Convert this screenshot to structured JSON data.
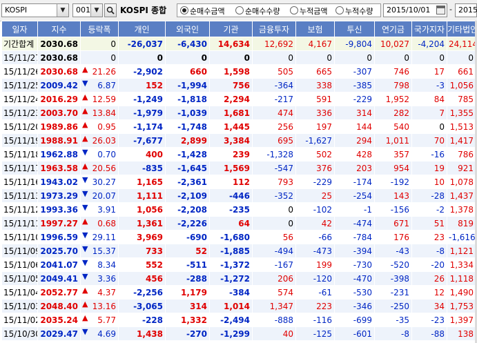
{
  "toolbar": {
    "market": "KOSPI",
    "code": "001",
    "index_name": "KOSPI 종합",
    "radios": [
      {
        "label": "순매수금액",
        "selected": true
      },
      {
        "label": "순매수수량",
        "selected": false
      },
      {
        "label": "누적금액",
        "selected": false
      },
      {
        "label": "누적수량",
        "selected": false
      }
    ],
    "date_from": "2015/10/01",
    "tilde": "-",
    "date_to": "2015"
  },
  "columns": [
    "일자",
    "지수",
    "등락폭",
    "개인",
    "외국인",
    "기관",
    "금융투자",
    "보험",
    "투신",
    "연기금",
    "국가지자",
    "기타법인"
  ],
  "rows": [
    {
      "date": "기간합계",
      "index": "2030.68",
      "dir": "none",
      "chg": "0",
      "ind": "-26,037",
      "for": "-6,430",
      "inst": "14,634",
      "fin": "12,692",
      "ins": "4,167",
      "trust": "-9,804",
      "pen": "10,027",
      "gov": "-4,204",
      "etc": "24,114",
      "type": "sum"
    },
    {
      "date": "15/11/27",
      "index": "2030.68",
      "dir": "none",
      "chg": "0",
      "ind": "0",
      "for": "0",
      "inst": "0",
      "fin": "0",
      "ins": "0",
      "trust": "0",
      "pen": "0",
      "gov": "0",
      "etc": "0"
    },
    {
      "date": "15/11/26",
      "index": "2030.68",
      "dir": "up",
      "chg": "21.26",
      "ind": "-2,902",
      "for": "660",
      "inst": "1,598",
      "fin": "505",
      "ins": "665",
      "trust": "-307",
      "pen": "746",
      "gov": "17",
      "etc": "661"
    },
    {
      "date": "15/11/25",
      "index": "2009.42",
      "dir": "down",
      "chg": "6.87",
      "ind": "152",
      "for": "-1,994",
      "inst": "756",
      "fin": "-364",
      "ins": "338",
      "trust": "-385",
      "pen": "798",
      "gov": "-3",
      "etc": "1,056"
    },
    {
      "date": "15/11/24",
      "index": "2016.29",
      "dir": "up",
      "chg": "12.59",
      "ind": "-1,249",
      "for": "-1,818",
      "inst": "2,294",
      "fin": "-217",
      "ins": "591",
      "trust": "-229",
      "pen": "1,952",
      "gov": "84",
      "etc": "785"
    },
    {
      "date": "15/11/23",
      "index": "2003.70",
      "dir": "up",
      "chg": "13.84",
      "ind": "-1,979",
      "for": "-1,039",
      "inst": "1,681",
      "fin": "474",
      "ins": "336",
      "trust": "314",
      "pen": "282",
      "gov": "7",
      "etc": "1,355"
    },
    {
      "date": "15/11/20",
      "index": "1989.86",
      "dir": "up",
      "chg": "0.95",
      "ind": "-1,174",
      "for": "-1,748",
      "inst": "1,445",
      "fin": "256",
      "ins": "197",
      "trust": "144",
      "pen": "540",
      "gov": "0",
      "etc": "1,513"
    },
    {
      "date": "15/11/19",
      "index": "1988.91",
      "dir": "up",
      "chg": "26.03",
      "ind": "-7,677",
      "for": "2,899",
      "inst": "3,384",
      "fin": "695",
      "ins": "-1,627",
      "trust": "294",
      "pen": "1,011",
      "gov": "70",
      "etc": "1,417"
    },
    {
      "date": "15/11/18",
      "index": "1962.88",
      "dir": "down",
      "chg": "0.70",
      "ind": "400",
      "for": "-1,428",
      "inst": "239",
      "fin": "-1,328",
      "ins": "502",
      "trust": "428",
      "pen": "357",
      "gov": "-16",
      "etc": "786"
    },
    {
      "date": "15/11/17",
      "index": "1963.58",
      "dir": "up",
      "chg": "20.56",
      "ind": "-835",
      "for": "-1,645",
      "inst": "1,569",
      "fin": "-547",
      "ins": "376",
      "trust": "203",
      "pen": "954",
      "gov": "19",
      "etc": "921"
    },
    {
      "date": "15/11/16",
      "index": "1943.02",
      "dir": "down",
      "chg": "30.27",
      "ind": "1,165",
      "for": "-2,361",
      "inst": "112",
      "fin": "793",
      "ins": "-229",
      "trust": "-174",
      "pen": "-192",
      "gov": "10",
      "etc": "1,078"
    },
    {
      "date": "15/11/13",
      "index": "1973.29",
      "dir": "down",
      "chg": "20.07",
      "ind": "1,111",
      "for": "-2,109",
      "inst": "-446",
      "fin": "-352",
      "ins": "25",
      "trust": "-254",
      "pen": "143",
      "gov": "-28",
      "etc": "1,437"
    },
    {
      "date": "15/11/12",
      "index": "1993.36",
      "dir": "down",
      "chg": "3.91",
      "ind": "1,056",
      "for": "-2,208",
      "inst": "-235",
      "fin": "0",
      "ins": "-102",
      "trust": "-1",
      "pen": "-156",
      "gov": "-2",
      "etc": "1,378"
    },
    {
      "date": "15/11/11",
      "index": "1997.27",
      "dir": "up",
      "chg": "0.68",
      "ind": "1,361",
      "for": "-2,226",
      "inst": "64",
      "fin": "0",
      "ins": "42",
      "trust": "-474",
      "pen": "671",
      "gov": "51",
      "etc": "819"
    },
    {
      "date": "15/11/10",
      "index": "1996.59",
      "dir": "down",
      "chg": "29.11",
      "ind": "3,969",
      "for": "-690",
      "inst": "-1,680",
      "fin": "56",
      "ins": "-66",
      "trust": "-784",
      "pen": "176",
      "gov": "23",
      "etc": "-1,616"
    },
    {
      "date": "15/11/09",
      "index": "2025.70",
      "dir": "down",
      "chg": "15.37",
      "ind": "733",
      "for": "52",
      "inst": "-1,885",
      "fin": "-494",
      "ins": "-473",
      "trust": "-394",
      "pen": "-43",
      "gov": "-8",
      "etc": "1,121"
    },
    {
      "date": "15/11/06",
      "index": "2041.07",
      "dir": "down",
      "chg": "8.34",
      "ind": "552",
      "for": "-511",
      "inst": "-1,372",
      "fin": "-167",
      "ins": "199",
      "trust": "-730",
      "pen": "-520",
      "gov": "-20",
      "etc": "1,334"
    },
    {
      "date": "15/11/05",
      "index": "2049.41",
      "dir": "down",
      "chg": "3.36",
      "ind": "456",
      "for": "-288",
      "inst": "-1,272",
      "fin": "206",
      "ins": "-120",
      "trust": "-470",
      "pen": "-398",
      "gov": "26",
      "etc": "1,118"
    },
    {
      "date": "15/11/04",
      "index": "2052.77",
      "dir": "up",
      "chg": "4.37",
      "ind": "-2,256",
      "for": "1,179",
      "inst": "-384",
      "fin": "574",
      "ins": "-61",
      "trust": "-530",
      "pen": "-231",
      "gov": "12",
      "etc": "1,490"
    },
    {
      "date": "15/11/03",
      "index": "2048.40",
      "dir": "up",
      "chg": "13.16",
      "ind": "-3,065",
      "for": "314",
      "inst": "1,014",
      "fin": "1,347",
      "ins": "223",
      "trust": "-346",
      "pen": "-250",
      "gov": "34",
      "etc": "1,753"
    },
    {
      "date": "15/11/02",
      "index": "2035.24",
      "dir": "up",
      "chg": "5.77",
      "ind": "-228",
      "for": "1,332",
      "inst": "-2,494",
      "fin": "-888",
      "ins": "-116",
      "trust": "-699",
      "pen": "-35",
      "gov": "-23",
      "etc": "1,397"
    },
    {
      "date": "15/10/30",
      "index": "2029.47",
      "dir": "down",
      "chg": "4.69",
      "ind": "1,438",
      "for": "-270",
      "inst": "-1,299",
      "fin": "40",
      "ins": "-125",
      "trust": "-601",
      "pen": "-8",
      "gov": "-88",
      "etc": "138"
    }
  ],
  "colors": {
    "header_bg": "#5a7fc4",
    "up": "#e00000",
    "down": "#0026c4",
    "row_alt": "#eef3fb",
    "sum_row": "#f3f7e4"
  }
}
